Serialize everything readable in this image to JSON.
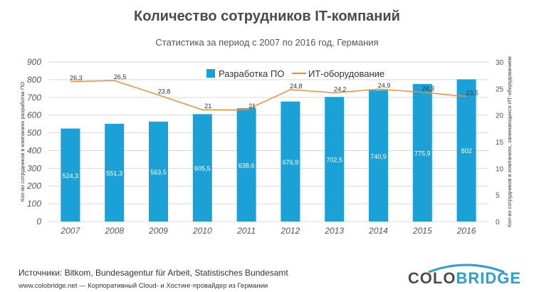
{
  "title": "Количество сотрудников IT-компаний",
  "subtitle": "Статистика за период с 2007 по 2016 год, Германия",
  "source": "Источники: Bitkom, Bundesagentur für Arbeit, Statistisches Bundesamt",
  "footer": "www.colobridge.net — Корпоративный Cloud- и Хостинг-провайдер из Германии",
  "logo": {
    "part1": "COLO",
    "part2": "BRIDGE"
  },
  "colors": {
    "bar": "#1ba1d6",
    "line": "#ef8e3c",
    "grid": "#d9d9d9",
    "logo_accent": "#2a9fd6"
  },
  "chart_data": {
    "type": "bar",
    "categories": [
      "2007",
      "2008",
      "2009",
      "2010",
      "2011",
      "2012",
      "2013",
      "2014",
      "2015",
      "2016"
    ],
    "series": [
      {
        "name": "Разработка ПО",
        "type": "bar",
        "axis": "left",
        "values": [
          524.3,
          551.3,
          563.5,
          605.5,
          638.6,
          676.9,
          702.5,
          740.9,
          775.9,
          802
        ],
        "labels": [
          "524,3",
          "551,3",
          "563,5",
          "605,5",
          "638,6",
          "676,9",
          "702,5",
          "740,9",
          "775,9",
          "802"
        ]
      },
      {
        "name": "ИТ-оборудование",
        "type": "line",
        "axis": "right",
        "values": [
          26.3,
          26.5,
          23.8,
          21,
          21,
          24.8,
          24.2,
          24.9,
          24.3,
          23.5
        ],
        "labels": [
          "26,3",
          "26,5",
          "23,8",
          "21",
          "21",
          "24,8",
          "24,2",
          "24,9",
          "24,3",
          "23,5"
        ]
      }
    ],
    "ylabel": "Кол-во сотрудников в компаниях разработки ПО",
    "y2label": "Кол-во сотрудников в компаниях, занимающихся ИТ-оборудованием",
    "ylim": [
      0,
      900
    ],
    "y2lim": [
      0,
      30
    ],
    "yticks": [
      "0",
      "100",
      "200",
      "300",
      "400",
      "500",
      "600",
      "700",
      "800",
      "900"
    ],
    "y2ticks": [
      "0",
      "5",
      "10",
      "15",
      "20",
      "25",
      "30"
    ],
    "legend": "top-center",
    "grid": true
  }
}
